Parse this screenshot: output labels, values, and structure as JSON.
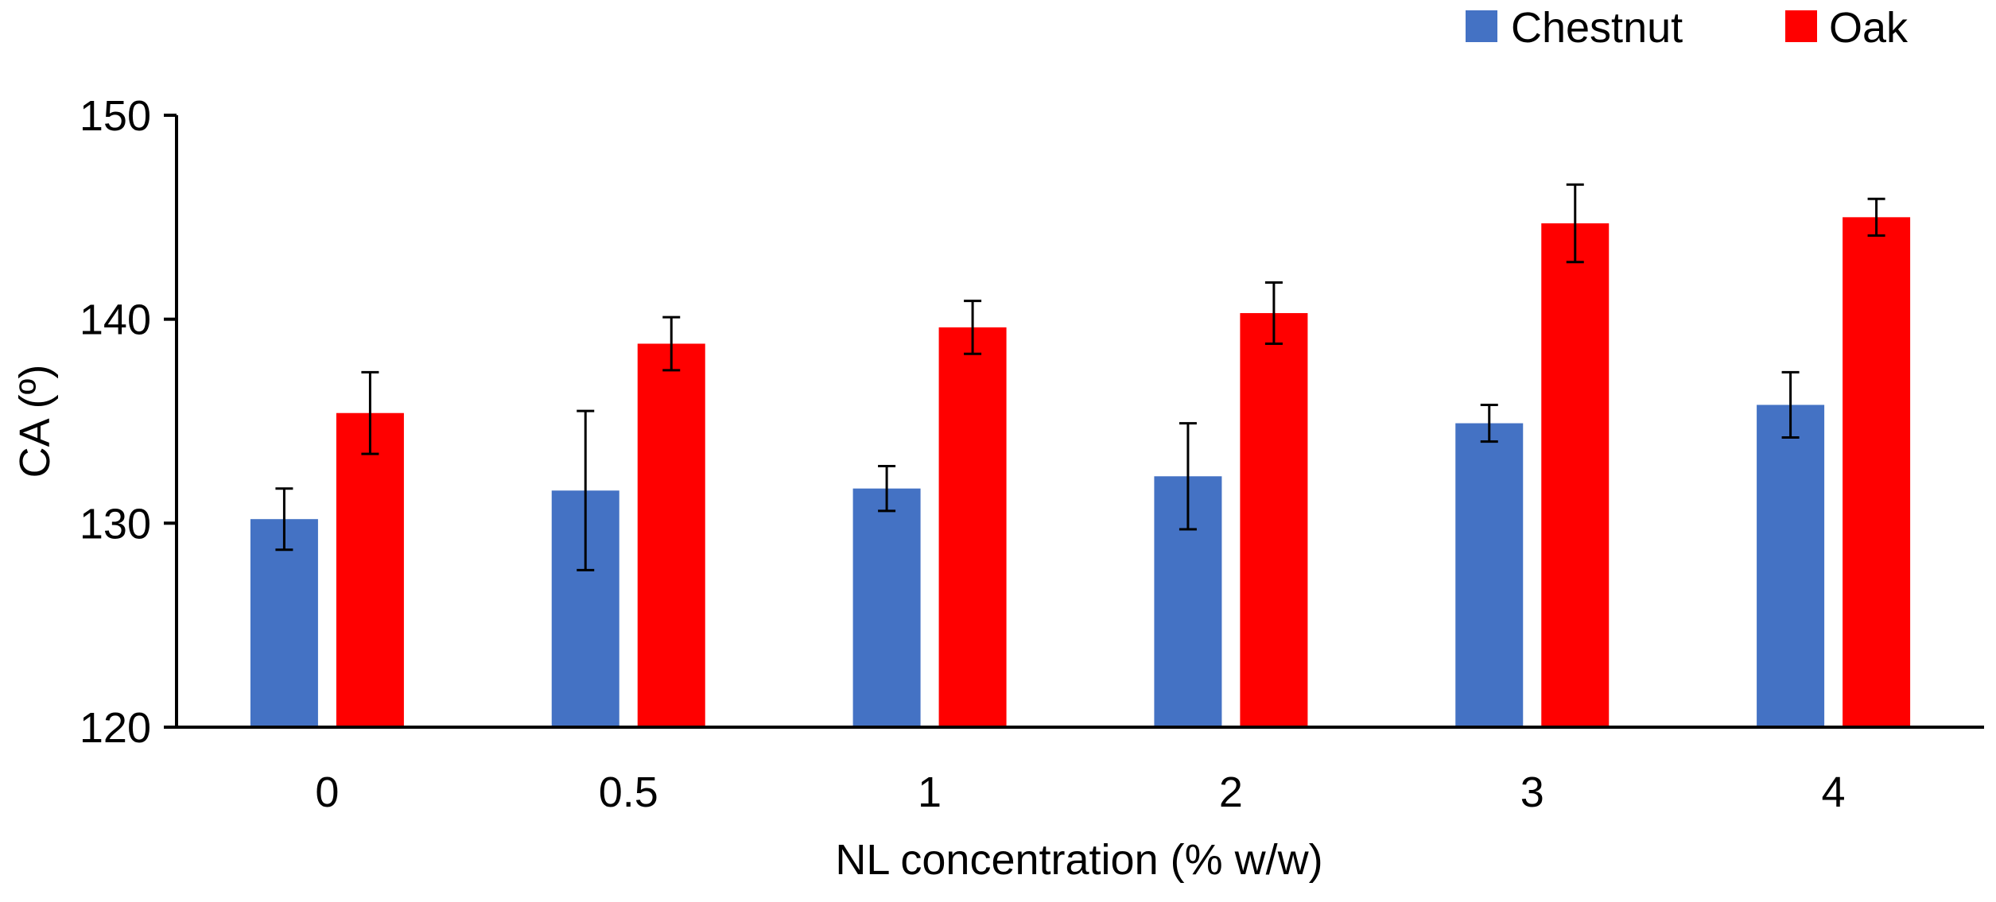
{
  "chart_data": {
    "type": "bar",
    "title": "",
    "xlabel": "NL concentration (% w/w)",
    "ylabel": "CA (º)",
    "categories": [
      "0",
      "0.5",
      "1",
      "2",
      "3",
      "4"
    ],
    "ylim": [
      120,
      150
    ],
    "yticks": [
      120,
      130,
      140,
      150
    ],
    "grid": false,
    "legend_position": "top-right",
    "series": [
      {
        "name": "Chestnut",
        "color": "#4472C4",
        "values": [
          130.2,
          131.6,
          131.7,
          132.3,
          134.9,
          135.8
        ],
        "errors": [
          1.5,
          3.9,
          1.1,
          2.6,
          0.9,
          1.6
        ]
      },
      {
        "name": "Oak",
        "color": "#FF0000",
        "values": [
          135.4,
          138.8,
          139.6,
          140.3,
          144.7,
          145.0
        ],
        "errors": [
          2.0,
          1.3,
          1.3,
          1.5,
          1.9,
          0.9
        ]
      }
    ]
  }
}
